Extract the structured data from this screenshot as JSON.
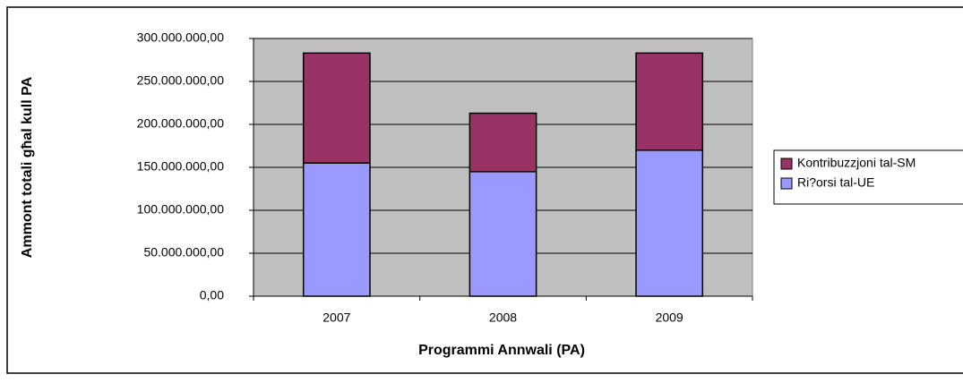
{
  "chart_data": {
    "type": "stacked_bar",
    "xlabel": "Programmi Annwali (PA)",
    "ylabel": "Ammont totali għal kull PA",
    "categories": [
      "2007",
      "2008",
      "2009"
    ],
    "series": [
      {
        "name": "Ri?orsi tal-UE",
        "color": "#9999ff",
        "values": [
          155000000,
          145000000,
          170000000
        ]
      },
      {
        "name": "Kontribuzzjoni tal-SM",
        "color": "#993366",
        "values": [
          128000000,
          68000000,
          113000000
        ]
      }
    ],
    "ylim": [
      0,
      300000000
    ],
    "yticks": [
      {
        "value": 0,
        "label": "0,00"
      },
      {
        "value": 50000000,
        "label": "50.000.000,00"
      },
      {
        "value": 100000000,
        "label": "100.000.000,00"
      },
      {
        "value": 150000000,
        "label": "150.000.000,00"
      },
      {
        "value": 200000000,
        "label": "200.000.000,00"
      },
      {
        "value": 250000000,
        "label": "250.000.000,00"
      },
      {
        "value": 300000000,
        "label": "300.000.000,00"
      }
    ],
    "grid": true,
    "legend": "right"
  }
}
